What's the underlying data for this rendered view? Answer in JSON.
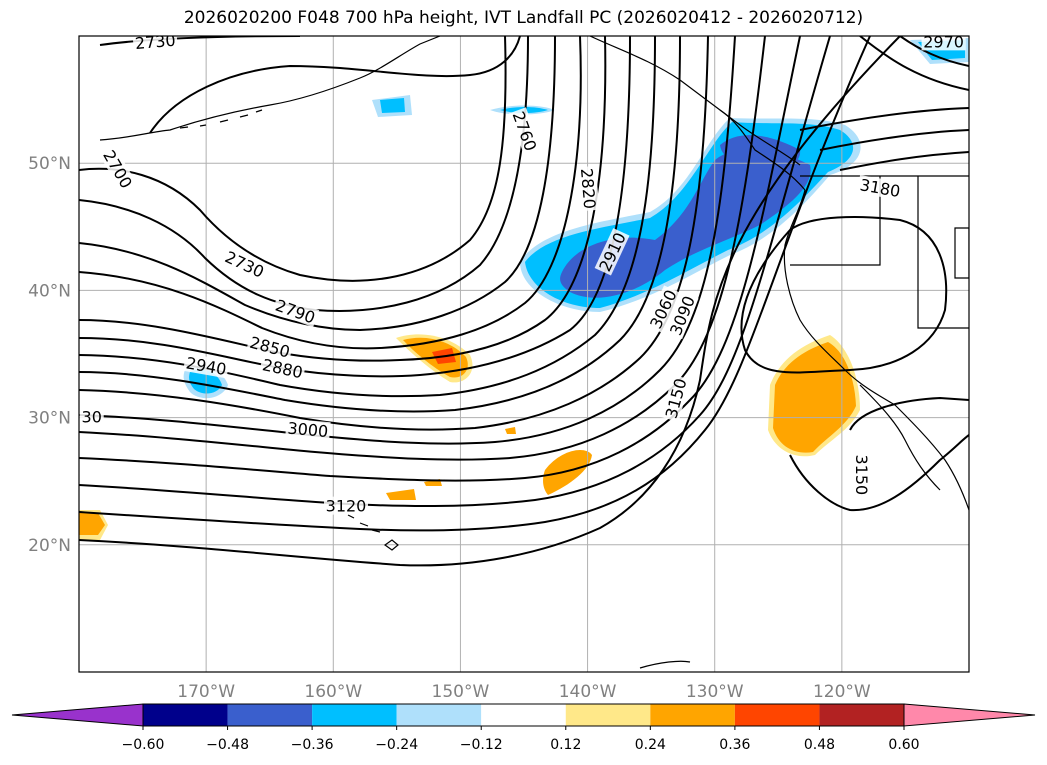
{
  "title": "2026020200 F048 700 hPa height, IVT Landfall PC (2026020412 - 2026020712)",
  "map": {
    "lon_range": [
      -180,
      -110
    ],
    "lat_range": [
      10,
      60
    ],
    "lon_ticks": [
      {
        "value": -170,
        "label": "170°W"
      },
      {
        "value": -160,
        "label": "160°W"
      },
      {
        "value": -150,
        "label": "150°W"
      },
      {
        "value": -140,
        "label": "140°W"
      },
      {
        "value": -130,
        "label": "130°W"
      },
      {
        "value": -120,
        "label": "120°W"
      }
    ],
    "lat_ticks": [
      {
        "value": 20,
        "label": "20°N"
      },
      {
        "value": 30,
        "label": "30°N"
      },
      {
        "value": 40,
        "label": "40°N"
      },
      {
        "value": 50,
        "label": "50°N"
      }
    ],
    "contour_labels": [
      {
        "text": "2730",
        "lon": -174,
        "lat": 59.5,
        "rot": -5
      },
      {
        "text": "2700",
        "lon": -177,
        "lat": 49.5,
        "rot": 60
      },
      {
        "text": "2760",
        "lon": -145,
        "lat": 52.5,
        "rot": 70
      },
      {
        "text": "2820",
        "lon": -140,
        "lat": 48,
        "rot": 85
      },
      {
        "text": "2730",
        "lon": -167,
        "lat": 42,
        "rot": 25
      },
      {
        "text": "2790",
        "lon": -163,
        "lat": 38.3,
        "rot": 20
      },
      {
        "text": "2850",
        "lon": -165,
        "lat": 35.5,
        "rot": 15
      },
      {
        "text": "2880",
        "lon": -164,
        "lat": 33.8,
        "rot": 12
      },
      {
        "text": "2940",
        "lon": -170,
        "lat": 34,
        "rot": 10
      },
      {
        "text": "2910",
        "lon": -138,
        "lat": 43,
        "rot": -65
      },
      {
        "text": "3060",
        "lon": -134,
        "lat": 38.5,
        "rot": -65
      },
      {
        "text": "3090",
        "lon": -132.5,
        "lat": 38,
        "rot": -68
      },
      {
        "text": "3150",
        "lon": -133,
        "lat": 31.5,
        "rot": -75
      },
      {
        "text": "3180",
        "lon": -117,
        "lat": 48,
        "rot": 10
      },
      {
        "text": "3150",
        "lon": -118.5,
        "lat": 25.5,
        "rot": 90
      },
      {
        "text": "30",
        "lon": -179,
        "lat": 30,
        "rot": 0
      },
      {
        "text": "3000",
        "lon": -162,
        "lat": 29,
        "rot": 5
      },
      {
        "text": "3120",
        "lon": -159,
        "lat": 23,
        "rot": 0
      },
      {
        "text": "2970",
        "lon": -112,
        "lat": 59.5,
        "rot": 0
      }
    ]
  },
  "colorbar": {
    "levels": [
      -0.6,
      -0.48,
      -0.36,
      -0.24,
      -0.12,
      0.12,
      0.24,
      0.36,
      0.48,
      0.6
    ],
    "tick_labels": [
      "−0.60",
      "−0.48",
      "−0.36",
      "−0.24",
      "−0.12",
      "0.12",
      "0.24",
      "0.36",
      "0.48",
      "0.60"
    ],
    "colors": {
      "below": "#9932cc",
      "bins": [
        "#00008b",
        "#3a5fcd",
        "#00bfff",
        "#afe0fb",
        "#ffffff",
        "#ffe889",
        "#ffa500",
        "#ff4500",
        "#b22222"
      ],
      "above": "#ff88aa"
    }
  }
}
